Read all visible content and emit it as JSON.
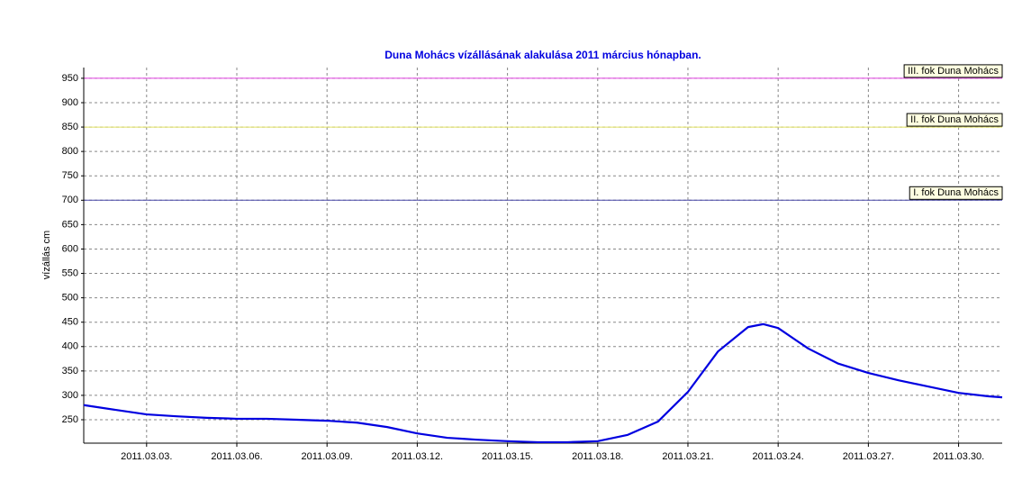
{
  "chart_data": {
    "type": "line",
    "title": "Duna Mohács vízállásának alakulása 2011 március hónapban.",
    "y_label": "vízállás cm",
    "x": [
      0.91,
      2,
      3,
      4,
      5,
      6,
      7,
      8,
      9,
      10,
      11,
      12,
      13,
      14,
      15,
      16,
      17,
      18,
      19,
      20,
      21,
      22,
      23,
      23.5,
      24,
      25,
      26,
      27,
      28,
      29,
      30,
      31,
      31.45
    ],
    "series": [
      {
        "name": null,
        "color": "#0000e0",
        "values": [
          280,
          270,
          261,
          257,
          254,
          252,
          252,
          250,
          248,
          244,
          235,
          222,
          213,
          209,
          206,
          204,
          204,
          206,
          219,
          246,
          307,
          390,
          440,
          446,
          438,
          396,
          365,
          346,
          331,
          318,
          305,
          298,
          296
        ]
      }
    ],
    "xlim": [
      0.91,
      31.45
    ],
    "xticks": [
      {
        "value": 3,
        "label": "2011.03.03."
      },
      {
        "value": 6,
        "label": "2011.03.06."
      },
      {
        "value": 9,
        "label": "2011.03.09."
      },
      {
        "value": 12,
        "label": "2011.03.12."
      },
      {
        "value": 15,
        "label": "2011.03.15."
      },
      {
        "value": 18,
        "label": "2011.03.18."
      },
      {
        "value": 21,
        "label": "2011.03.21."
      },
      {
        "value": 24,
        "label": "2011.03.24."
      },
      {
        "value": 27,
        "label": "2011.03.27."
      },
      {
        "value": 30,
        "label": "2011.03.30."
      }
    ],
    "ylim": [
      202,
      972
    ],
    "yticks": [
      250,
      300,
      350,
      400,
      450,
      500,
      550,
      600,
      650,
      700,
      750,
      800,
      850,
      900,
      950
    ],
    "grid": true,
    "thresholds": [
      {
        "label": "III. fok Duna Mohács",
        "value": 950,
        "color": "#e040e0"
      },
      {
        "label": "II. fok Duna Mohács",
        "value": 850,
        "color": "#e0e060"
      },
      {
        "label": "I. fok Duna Mohács",
        "value": 700,
        "color": "#4848a8"
      }
    ]
  }
}
